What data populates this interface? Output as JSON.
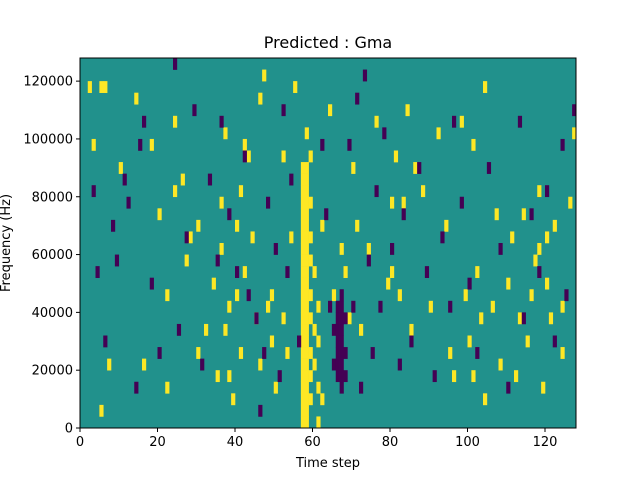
{
  "chart_data": {
    "type": "heatmap",
    "title": "Predicted : Gma",
    "xlabel": "Time step",
    "ylabel": "Frequency (Hz)",
    "xlim": [
      0,
      128
    ],
    "ylim": [
      0,
      128000
    ],
    "x_ticks": [
      0,
      20,
      40,
      60,
      80,
      100,
      120
    ],
    "y_ticks": [
      0,
      20000,
      40000,
      60000,
      80000,
      100000,
      120000
    ],
    "y_tick_labels": [
      "0",
      "20000",
      "40000",
      "60000",
      "80000",
      "100000",
      "120000"
    ],
    "grid": false,
    "legend": "none",
    "n_time_steps": 128,
    "n_frequency_bins": 32,
    "bin_hz": 4000,
    "colors": {
      "background": "#21918c",
      "high": "#fde725",
      "low": "#440154"
    },
    "cells_high": [
      [
        2,
        29
      ],
      [
        3,
        24
      ],
      [
        5,
        29
      ],
      [
        5,
        1
      ],
      [
        6,
        29
      ],
      [
        7,
        5
      ],
      [
        10,
        22
      ],
      [
        14,
        28
      ],
      [
        16,
        5
      ],
      [
        18,
        24
      ],
      [
        20,
        18
      ],
      [
        22,
        11
      ],
      [
        22,
        3
      ],
      [
        24,
        20
      ],
      [
        24,
        26
      ],
      [
        26,
        21
      ],
      [
        27,
        14
      ],
      [
        28,
        16
      ],
      [
        30,
        17
      ],
      [
        30,
        6
      ],
      [
        32,
        8
      ],
      [
        34,
        12
      ],
      [
        35,
        4
      ],
      [
        36,
        19
      ],
      [
        36,
        15
      ],
      [
        37,
        25
      ],
      [
        37,
        8
      ],
      [
        38,
        10
      ],
      [
        38,
        4
      ],
      [
        39,
        2
      ],
      [
        40,
        11
      ],
      [
        40,
        17
      ],
      [
        41,
        20
      ],
      [
        41,
        6
      ],
      [
        42,
        13
      ],
      [
        42,
        24
      ],
      [
        43,
        23
      ],
      [
        44,
        16
      ],
      [
        45,
        9
      ],
      [
        46,
        5
      ],
      [
        46,
        28
      ],
      [
        47,
        30
      ],
      [
        48,
        10
      ],
      [
        49,
        11
      ],
      [
        49,
        7
      ],
      [
        50,
        3
      ],
      [
        52,
        9
      ],
      [
        52,
        23
      ],
      [
        53,
        6
      ],
      [
        54,
        16
      ],
      [
        55,
        29
      ],
      [
        57,
        0
      ],
      [
        57,
        1
      ],
      [
        57,
        2
      ],
      [
        57,
        3
      ],
      [
        57,
        4
      ],
      [
        57,
        5
      ],
      [
        57,
        6
      ],
      [
        57,
        7
      ],
      [
        57,
        8
      ],
      [
        57,
        9
      ],
      [
        57,
        10
      ],
      [
        57,
        11
      ],
      [
        57,
        12
      ],
      [
        57,
        13
      ],
      [
        57,
        14
      ],
      [
        57,
        15
      ],
      [
        57,
        16
      ],
      [
        57,
        17
      ],
      [
        57,
        18
      ],
      [
        57,
        19
      ],
      [
        57,
        20
      ],
      [
        57,
        21
      ],
      [
        57,
        22
      ],
      [
        58,
        0
      ],
      [
        58,
        1
      ],
      [
        58,
        2
      ],
      [
        58,
        3
      ],
      [
        58,
        4
      ],
      [
        58,
        5
      ],
      [
        58,
        6
      ],
      [
        58,
        7
      ],
      [
        58,
        8
      ],
      [
        58,
        9
      ],
      [
        58,
        10
      ],
      [
        58,
        11
      ],
      [
        58,
        12
      ],
      [
        58,
        13
      ],
      [
        58,
        14
      ],
      [
        58,
        15
      ],
      [
        58,
        16
      ],
      [
        58,
        17
      ],
      [
        58,
        18
      ],
      [
        58,
        19
      ],
      [
        58,
        20
      ],
      [
        58,
        21
      ],
      [
        58,
        22
      ],
      [
        58,
        25
      ],
      [
        59,
        2
      ],
      [
        59,
        4
      ],
      [
        59,
        6
      ],
      [
        59,
        9
      ],
      [
        59,
        11
      ],
      [
        59,
        14
      ],
      [
        59,
        16
      ],
      [
        59,
        19
      ],
      [
        59,
        23
      ],
      [
        60,
        5
      ],
      [
        60,
        8
      ],
      [
        60,
        13
      ],
      [
        61,
        0
      ],
      [
        61,
        3
      ],
      [
        61,
        7
      ],
      [
        61,
        10
      ],
      [
        62,
        2
      ],
      [
        62,
        17
      ],
      [
        64,
        27
      ],
      [
        65,
        11
      ],
      [
        67,
        15
      ],
      [
        68,
        13
      ],
      [
        69,
        9
      ],
      [
        70,
        22
      ],
      [
        71,
        17
      ],
      [
        72,
        8
      ],
      [
        74,
        15
      ],
      [
        76,
        26
      ],
      [
        79,
        12
      ],
      [
        80,
        19
      ],
      [
        80,
        13
      ],
      [
        81,
        23
      ],
      [
        82,
        11
      ],
      [
        83,
        19
      ],
      [
        84,
        27
      ],
      [
        85,
        8
      ],
      [
        86,
        22
      ],
      [
        88,
        20
      ],
      [
        90,
        10
      ],
      [
        92,
        25
      ],
      [
        94,
        17
      ],
      [
        95,
        6
      ],
      [
        96,
        4
      ],
      [
        98,
        26
      ],
      [
        99,
        11
      ],
      [
        100,
        7
      ],
      [
        101,
        4
      ],
      [
        101,
        24
      ],
      [
        102,
        13
      ],
      [
        103,
        9
      ],
      [
        104,
        29
      ],
      [
        104,
        2
      ],
      [
        106,
        10
      ],
      [
        107,
        18
      ],
      [
        108,
        5
      ],
      [
        110,
        12
      ],
      [
        111,
        16
      ],
      [
        112,
        4
      ],
      [
        113,
        9
      ],
      [
        114,
        18
      ],
      [
        115,
        7
      ],
      [
        116,
        11
      ],
      [
        117,
        14
      ],
      [
        118,
        15
      ],
      [
        118,
        20
      ],
      [
        119,
        3
      ],
      [
        120,
        16
      ],
      [
        120,
        12
      ],
      [
        121,
        9
      ],
      [
        122,
        17
      ],
      [
        124,
        10
      ],
      [
        124,
        6
      ],
      [
        126,
        19
      ],
      [
        127,
        25
      ]
    ],
    "cells_low": [
      [
        3,
        20
      ],
      [
        4,
        13
      ],
      [
        6,
        7
      ],
      [
        8,
        17
      ],
      [
        9,
        14
      ],
      [
        11,
        21
      ],
      [
        12,
        19
      ],
      [
        14,
        3
      ],
      [
        15,
        24
      ],
      [
        16,
        26
      ],
      [
        18,
        12
      ],
      [
        20,
        6
      ],
      [
        24,
        31
      ],
      [
        25,
        8
      ],
      [
        27,
        16
      ],
      [
        29,
        27
      ],
      [
        31,
        5
      ],
      [
        33,
        21
      ],
      [
        35,
        14
      ],
      [
        36,
        26
      ],
      [
        38,
        18
      ],
      [
        40,
        13
      ],
      [
        42,
        23
      ],
      [
        43,
        11
      ],
      [
        45,
        9
      ],
      [
        46,
        1
      ],
      [
        47,
        6
      ],
      [
        48,
        19
      ],
      [
        50,
        15
      ],
      [
        51,
        4
      ],
      [
        52,
        27
      ],
      [
        53,
        13
      ],
      [
        54,
        21
      ],
      [
        56,
        7
      ],
      [
        62,
        24
      ],
      [
        63,
        18
      ],
      [
        64,
        10
      ],
      [
        65,
        8
      ],
      [
        65,
        5
      ],
      [
        66,
        4
      ],
      [
        66,
        5
      ],
      [
        66,
        6
      ],
      [
        66,
        7
      ],
      [
        66,
        8
      ],
      [
        66,
        9
      ],
      [
        66,
        10
      ],
      [
        67,
        3
      ],
      [
        67,
        4
      ],
      [
        67,
        5
      ],
      [
        67,
        6
      ],
      [
        67,
        7
      ],
      [
        67,
        8
      ],
      [
        67,
        9
      ],
      [
        67,
        10
      ],
      [
        67,
        11
      ],
      [
        68,
        4
      ],
      [
        68,
        6
      ],
      [
        68,
        9
      ],
      [
        69,
        24
      ],
      [
        70,
        10
      ],
      [
        71,
        28
      ],
      [
        72,
        3
      ],
      [
        73,
        30
      ],
      [
        74,
        14
      ],
      [
        75,
        6
      ],
      [
        76,
        20
      ],
      [
        77,
        10
      ],
      [
        78,
        25
      ],
      [
        80,
        15
      ],
      [
        82,
        5
      ],
      [
        83,
        18
      ],
      [
        85,
        7
      ],
      [
        87,
        22
      ],
      [
        89,
        13
      ],
      [
        91,
        4
      ],
      [
        93,
        16
      ],
      [
        95,
        10
      ],
      [
        96,
        26
      ],
      [
        98,
        19
      ],
      [
        100,
        12
      ],
      [
        102,
        6
      ],
      [
        105,
        22
      ],
      [
        108,
        15
      ],
      [
        110,
        3
      ],
      [
        113,
        26
      ],
      [
        114,
        9
      ],
      [
        116,
        18
      ],
      [
        118,
        13
      ],
      [
        120,
        20
      ],
      [
        122,
        7
      ],
      [
        124,
        24
      ],
      [
        125,
        11
      ],
      [
        127,
        27
      ]
    ]
  }
}
